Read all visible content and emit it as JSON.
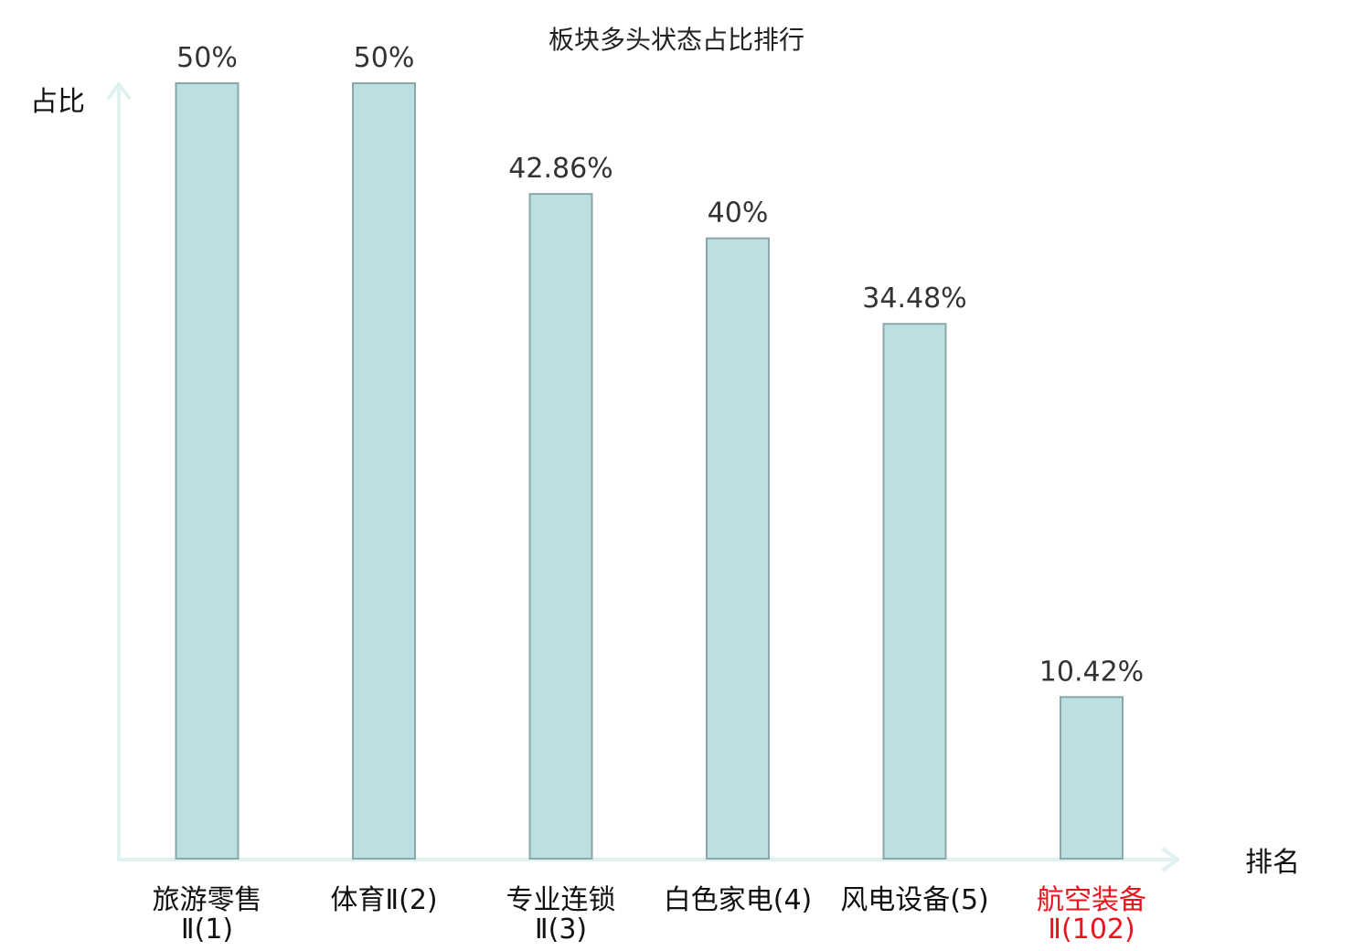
{
  "chart_data": {
    "type": "bar",
    "title": "板块多头状态占比排行",
    "xlabel": "排名",
    "ylabel": "占比",
    "categories": [
      [
        "旅游零售",
        "Ⅱ(1)"
      ],
      [
        "体育Ⅱ(2)"
      ],
      [
        "专业连锁",
        "Ⅱ(3)"
      ],
      [
        "白色家电(4)"
      ],
      [
        "风电设备(5)"
      ],
      [
        "航空装备",
        "Ⅱ(102)"
      ]
    ],
    "values": [
      50,
      50,
      42.86,
      40,
      34.48,
      10.42
    ],
    "value_labels": [
      "50%",
      "50%",
      "42.86%",
      "40%",
      "34.48%",
      "10.42%"
    ],
    "highlight_index": 5,
    "ylim": [
      0,
      50
    ],
    "grid": false,
    "legend": "none",
    "colors": {
      "bar_fill": "#bce0e2",
      "bar_stroke": "#8aa7ab",
      "axis": "#dff2ef",
      "label": "#111111",
      "highlight": "#e8141e"
    }
  }
}
